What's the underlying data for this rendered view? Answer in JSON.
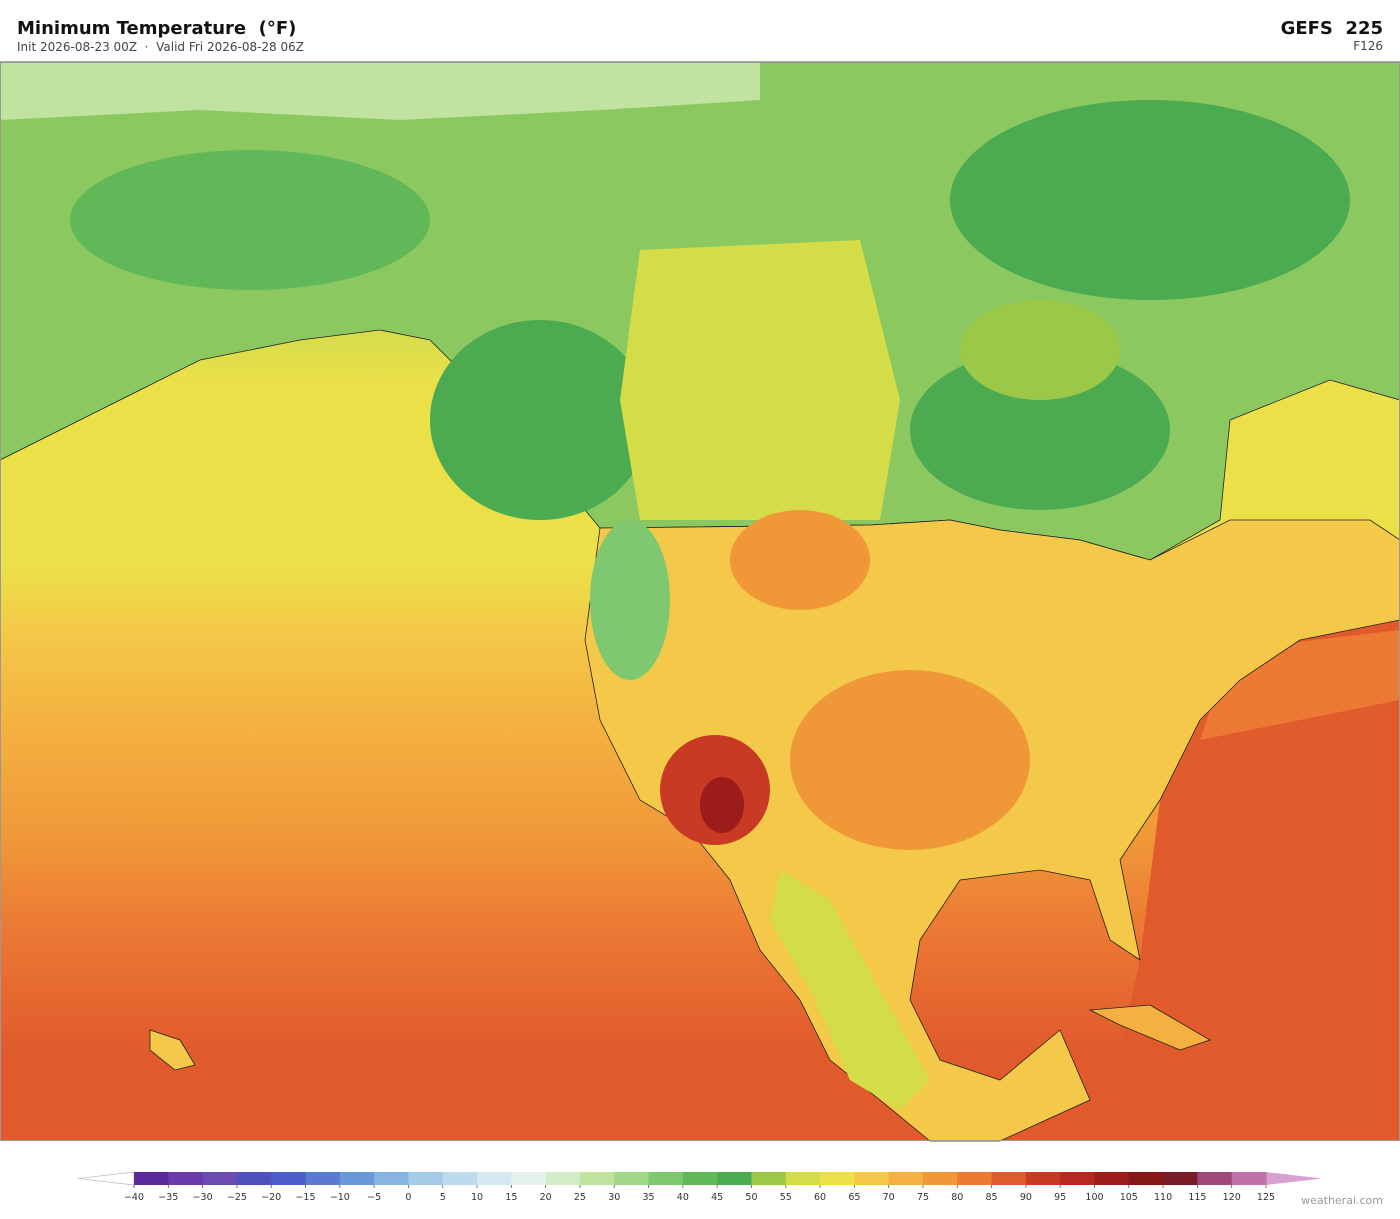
{
  "header": {
    "title": "Minimum Temperature  (°F)",
    "subtitle": "Init 2026-08-23 00Z  ·  Valid Fri 2026-08-28 06Z",
    "model": "GEFS  225",
    "forecast_hour": "F126"
  },
  "colorbar": {
    "ticks": [
      {
        "value": -40,
        "label": "−40"
      },
      {
        "value": -35,
        "label": "−35"
      },
      {
        "value": -30,
        "label": "−30"
      },
      {
        "value": -25,
        "label": "−25"
      },
      {
        "value": -20,
        "label": "−20"
      },
      {
        "value": -15,
        "label": "−15"
      },
      {
        "value": -10,
        "label": "−10"
      },
      {
        "value": -5,
        "label": "−5"
      },
      0,
      5,
      10,
      15,
      20,
      25,
      30,
      35,
      40,
      45,
      50,
      55,
      60,
      65,
      70,
      75,
      80,
      85,
      90,
      95,
      100,
      105,
      110,
      115,
      120,
      125
    ],
    "colors": [
      "#5a2a9a",
      "#6a3aa8",
      "#6b4cb0",
      "#5050c0",
      "#4a5cc8",
      "#5a7ad0",
      "#6a98d6",
      "#88b4e0",
      "#a4cbe8",
      "#bcdcee",
      "#d4e8f0",
      "#e4f2ec",
      "#d4ecc8",
      "#c0e4a0",
      "#a0d888",
      "#80c870",
      "#60b858",
      "#4caa50",
      "#9cc848",
      "#d4dc48",
      "#ece048",
      "#f4c848",
      "#f4b040",
      "#f09838",
      "#ec7a34",
      "#e05a2c",
      "#c83a24",
      "#b82820",
      "#9c1c1c",
      "#881818",
      "#7a1c28",
      "#a04878",
      "#c070a8"
    ],
    "under_color": "#ffffff",
    "over_color": "#d8a0d0"
  },
  "footer": {
    "credit": "weatherai.com"
  }
}
